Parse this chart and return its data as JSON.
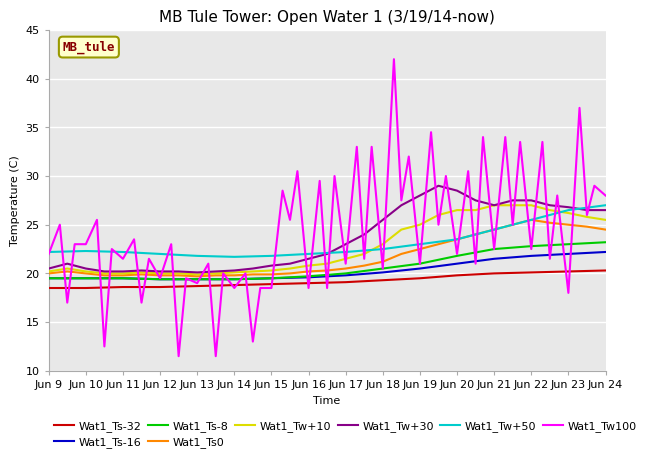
{
  "title": "MB Tule Tower: Open Water 1 (3/19/14-now)",
  "xlabel": "Time",
  "ylabel": "Temperature (C)",
  "xlim": [
    0,
    15
  ],
  "ylim": [
    10,
    45
  ],
  "yticks": [
    10,
    15,
    20,
    25,
    30,
    35,
    40,
    45
  ],
  "xtick_labels": [
    "Jun 9",
    "Jun 10",
    "Jun 11",
    "Jun 12",
    "Jun 13",
    "Jun 14",
    "Jun 15",
    "Jun 16",
    "Jun 17",
    "Jun 18",
    "Jun 19",
    "Jun 20",
    "Jun 21",
    "Jun 22",
    "Jun 23",
    "Jun 24"
  ],
  "watermark_text": "MB_tule",
  "series": [
    {
      "name": "Wat1_Ts-32",
      "color": "#cc0000",
      "lw": 1.5,
      "x": [
        0,
        1,
        2,
        3,
        4,
        5,
        6,
        7,
        8,
        9,
        10,
        11,
        12,
        13,
        14,
        15
      ],
      "y": [
        18.5,
        18.5,
        18.6,
        18.6,
        18.7,
        18.8,
        18.9,
        19.0,
        19.1,
        19.3,
        19.5,
        19.8,
        20.0,
        20.1,
        20.2,
        20.3
      ]
    },
    {
      "name": "Wat1_Ts-16",
      "color": "#0000cc",
      "lw": 1.5,
      "x": [
        0,
        1,
        2,
        3,
        4,
        5,
        6,
        7,
        8,
        9,
        10,
        11,
        12,
        13,
        14,
        15
      ],
      "y": [
        19.5,
        19.5,
        19.5,
        19.4,
        19.4,
        19.4,
        19.5,
        19.6,
        19.8,
        20.1,
        20.5,
        21.0,
        21.5,
        21.8,
        22.0,
        22.2
      ]
    },
    {
      "name": "Wat1_Ts-8",
      "color": "#00cc00",
      "lw": 1.5,
      "x": [
        0,
        1,
        2,
        3,
        4,
        5,
        6,
        7,
        8,
        9,
        10,
        11,
        12,
        13,
        14,
        15
      ],
      "y": [
        19.5,
        19.5,
        19.5,
        19.4,
        19.4,
        19.4,
        19.5,
        19.7,
        20.0,
        20.5,
        21.0,
        21.8,
        22.5,
        22.8,
        23.0,
        23.2
      ]
    },
    {
      "name": "Wat1_Ts0",
      "color": "#ff8800",
      "lw": 1.5,
      "x": [
        0,
        0.5,
        1,
        1.5,
        2,
        2.5,
        3,
        3.5,
        4,
        4.5,
        5,
        5.5,
        6,
        6.5,
        7,
        7.5,
        8,
        8.5,
        9,
        9.5,
        10,
        10.5,
        11,
        11.5,
        12,
        12.5,
        13,
        13.5,
        14,
        14.5,
        15
      ],
      "y": [
        20.0,
        20.2,
        20.0,
        19.8,
        19.8,
        19.9,
        19.8,
        19.8,
        19.7,
        19.8,
        19.8,
        19.9,
        19.9,
        20.0,
        20.2,
        20.3,
        20.5,
        20.8,
        21.2,
        22.0,
        22.5,
        23.0,
        23.5,
        24.0,
        24.5,
        25.0,
        25.5,
        25.2,
        25.0,
        24.8,
        24.5
      ]
    },
    {
      "name": "Wat1_Tw+10",
      "color": "#dddd00",
      "lw": 1.5,
      "x": [
        0,
        0.5,
        1,
        1.5,
        2,
        2.5,
        3,
        3.5,
        4,
        4.5,
        5,
        5.5,
        6,
        6.5,
        7,
        7.5,
        8,
        8.5,
        9,
        9.5,
        10,
        10.5,
        11,
        11.5,
        12,
        12.5,
        13,
        13.5,
        14,
        14.5,
        15
      ],
      "y": [
        20.2,
        20.5,
        20.2,
        20.0,
        20.0,
        20.1,
        20.0,
        20.0,
        19.9,
        20.0,
        20.1,
        20.2,
        20.3,
        20.5,
        20.8,
        21.0,
        21.5,
        22.0,
        23.0,
        24.5,
        25.0,
        26.0,
        26.5,
        26.5,
        27.0,
        27.0,
        27.0,
        26.5,
        26.2,
        25.8,
        25.5
      ]
    },
    {
      "name": "Wat1_Tw+30",
      "color": "#880088",
      "lw": 1.5,
      "x": [
        0,
        0.5,
        1,
        1.5,
        2,
        2.5,
        3,
        3.5,
        4,
        4.5,
        5,
        5.5,
        6,
        6.5,
        7,
        7.5,
        8,
        8.5,
        9,
        9.5,
        10,
        10.5,
        11,
        11.5,
        12,
        12.5,
        13,
        13.5,
        14,
        14.5,
        15
      ],
      "y": [
        20.5,
        21.0,
        20.5,
        20.2,
        20.2,
        20.3,
        20.2,
        20.2,
        20.1,
        20.2,
        20.3,
        20.5,
        20.8,
        21.0,
        21.5,
        22.0,
        23.0,
        24.0,
        25.5,
        27.0,
        28.0,
        29.0,
        28.5,
        27.5,
        27.0,
        27.5,
        27.5,
        27.0,
        26.8,
        26.5,
        26.5
      ]
    },
    {
      "name": "Wat1_Tw+50",
      "color": "#00cccc",
      "lw": 1.5,
      "x": [
        0,
        1,
        2,
        3,
        4,
        5,
        6,
        7,
        8,
        9,
        10,
        11,
        12,
        13,
        14,
        15
      ],
      "y": [
        22.2,
        22.3,
        22.2,
        22.0,
        21.8,
        21.7,
        21.8,
        22.0,
        22.2,
        22.5,
        23.0,
        23.5,
        24.5,
        25.5,
        26.5,
        27.0
      ]
    },
    {
      "name": "Wat1_Tw100",
      "color": "#ff00ff",
      "lw": 1.5,
      "x": [
        0,
        0.3,
        0.5,
        0.7,
        1,
        1.3,
        1.5,
        1.7,
        2,
        2.3,
        2.5,
        2.7,
        3,
        3.3,
        3.5,
        3.7,
        4,
        4.3,
        4.5,
        4.7,
        5,
        5.3,
        5.5,
        5.7,
        6,
        6.3,
        6.5,
        6.7,
        7,
        7.3,
        7.5,
        7.7,
        8,
        8.3,
        8.5,
        8.7,
        9,
        9.3,
        9.5,
        9.7,
        10,
        10.3,
        10.5,
        10.7,
        11,
        11.3,
        11.5,
        11.7,
        12,
        12.3,
        12.5,
        12.7,
        13,
        13.3,
        13.5,
        13.7,
        14,
        14.3,
        14.5,
        14.7,
        15
      ],
      "y": [
        22.0,
        25.0,
        17.0,
        23.0,
        23.0,
        25.5,
        12.5,
        22.5,
        21.5,
        23.5,
        17.0,
        21.5,
        19.5,
        23.0,
        11.5,
        19.5,
        19.0,
        21.0,
        11.5,
        20.0,
        18.5,
        20.0,
        13.0,
        18.5,
        18.5,
        28.5,
        25.5,
        30.5,
        18.5,
        29.5,
        18.5,
        30.0,
        21.0,
        33.0,
        21.5,
        33.0,
        20.5,
        42.0,
        27.5,
        32.0,
        21.0,
        34.5,
        25.0,
        30.0,
        22.0,
        30.5,
        21.0,
        34.0,
        22.5,
        34.0,
        25.0,
        33.5,
        22.5,
        33.5,
        21.5,
        28.0,
        18.0,
        37.0,
        26.0,
        29.0,
        28.0
      ]
    }
  ],
  "fig_bg_color": "#ffffff",
  "plot_bg_color": "#e8e8e8",
  "grid_color": "#ffffff",
  "title_fontsize": 11,
  "axis_fontsize": 8,
  "legend_fontsize": 8,
  "tick_fontsize": 8,
  "watermark_color": "#880000",
  "watermark_bg": "#ffffcc",
  "watermark_edge": "#999900"
}
